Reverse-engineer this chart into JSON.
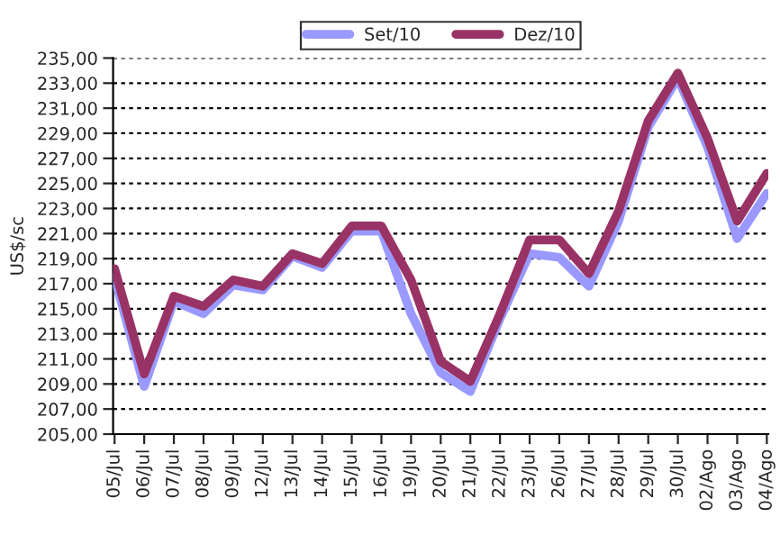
{
  "chart_data": {
    "type": "line",
    "ylabel": "US$/sc",
    "categories": [
      "05/Jul",
      "06/Jul",
      "07/Jul",
      "08/Jul",
      "09/Jul",
      "12/Jul",
      "13/Jul",
      "14/Jul",
      "15/Jul",
      "16/Jul",
      "19/Jul",
      "20/Jul",
      "21/Jul",
      "22/Jul",
      "23/Jul",
      "26/Jul",
      "27/Jul",
      "28/Jul",
      "29/Jul",
      "30/Jul",
      "02/Ago",
      "03/Ago",
      "04/Ago"
    ],
    "series": [
      {
        "name": "Set/10",
        "color": "#9999ff",
        "values": [
          217.5,
          208.8,
          215.6,
          214.6,
          216.9,
          216.5,
          219.2,
          218.3,
          221.2,
          221.2,
          214.6,
          209.9,
          208.4,
          214.2,
          219.4,
          219.1,
          216.8,
          222.0,
          229.5,
          233.4,
          227.9,
          220.6,
          224.2
        ]
      },
      {
        "name": "Dez/10",
        "color": "#993366",
        "values": [
          218.2,
          209.8,
          216.0,
          215.2,
          217.3,
          216.8,
          219.4,
          218.6,
          221.6,
          221.6,
          217.3,
          210.8,
          209.2,
          214.6,
          220.5,
          220.5,
          217.8,
          222.8,
          230.0,
          233.8,
          228.6,
          222.0,
          225.8
        ]
      }
    ],
    "ylim": [
      205,
      235
    ],
    "yticks": [
      {
        "value": 205,
        "label": "205,00"
      },
      {
        "value": 207,
        "label": "207,00"
      },
      {
        "value": 209,
        "label": "209,00"
      },
      {
        "value": 211,
        "label": "211,00"
      },
      {
        "value": 213,
        "label": "213,00"
      },
      {
        "value": 215,
        "label": "215,00"
      },
      {
        "value": 217,
        "label": "217,00"
      },
      {
        "value": 219,
        "label": "219,00"
      },
      {
        "value": 221,
        "label": "221,00"
      },
      {
        "value": 223,
        "label": "223,00"
      },
      {
        "value": 225,
        "label": "225,00"
      },
      {
        "value": 227,
        "label": "227,00"
      },
      {
        "value": 229,
        "label": "229,00"
      },
      {
        "value": 231,
        "label": "231,00"
      },
      {
        "value": 233,
        "label": "233,00"
      },
      {
        "value": 235,
        "label": "235,00"
      }
    ],
    "grid": "y",
    "legend": "top",
    "marker": "none",
    "line_style": "solid"
  }
}
